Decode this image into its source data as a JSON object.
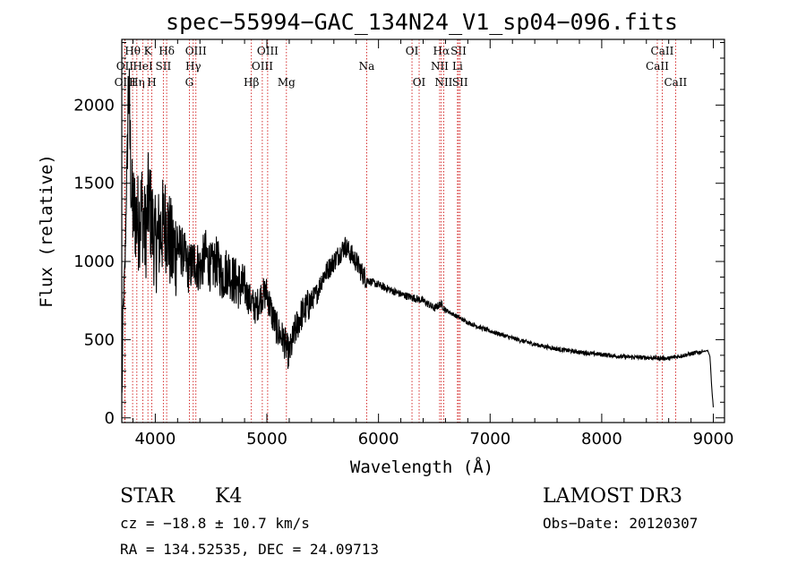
{
  "chart_data": {
    "type": "line",
    "title": "spec−55994−GAC_134N24_V1_sp04−096.fits",
    "xlabel": "Wavelength (Å)",
    "ylabel": "Flux (relative)",
    "xlim": [
      3700,
      9100
    ],
    "ylim": [
      -30,
      2420
    ],
    "xticks": [
      4000,
      5000,
      6000,
      7000,
      8000,
      9000
    ],
    "yticks": [
      0,
      500,
      1000,
      1500,
      2000
    ],
    "colors": {
      "spectrum": "#000000",
      "lines": "#cc0000"
    },
    "spectrum_anchor_points": {
      "x": [
        3700,
        3710,
        3730,
        3760,
        3790,
        3820,
        3850,
        3880,
        3910,
        3940,
        3970,
        4000,
        4050,
        4100,
        4150,
        4200,
        4250,
        4300,
        4350,
        4400,
        4450,
        4500,
        4550,
        4600,
        4650,
        4700,
        4750,
        4800,
        4850,
        4900,
        4950,
        5000,
        5050,
        5100,
        5150,
        5200,
        5250,
        5300,
        5350,
        5400,
        5450,
        5500,
        5550,
        5600,
        5650,
        5700,
        5750,
        5800,
        5850,
        5900,
        6000,
        6100,
        6200,
        6300,
        6400,
        6500,
        6560,
        6600,
        6700,
        6800,
        6900,
        7000,
        7200,
        7400,
        7600,
        7800,
        8000,
        8200,
        8400,
        8600,
        8800,
        8950,
        8970,
        8985,
        9000
      ],
      "y": [
        0,
        650,
        1000,
        2150,
        1350,
        1300,
        1250,
        1350,
        1150,
        1400,
        1250,
        1100,
        1200,
        1250,
        1050,
        1100,
        1050,
        950,
        1000,
        950,
        1050,
        950,
        1000,
        900,
        950,
        880,
        850,
        820,
        750,
        700,
        780,
        800,
        650,
        550,
        500,
        400,
        550,
        650,
        700,
        750,
        800,
        900,
        950,
        1000,
        1050,
        1100,
        1050,
        1000,
        930,
        880,
        850,
        820,
        790,
        770,
        750,
        700,
        730,
        690,
        650,
        610,
        580,
        555,
        510,
        470,
        440,
        420,
        405,
        390,
        385,
        380,
        410,
        430,
        390,
        200,
        60
      ]
    },
    "spectral_lines": [
      {
        "name": "Hθ",
        "wavelength": 3797,
        "row": 1
      },
      {
        "name": "OII",
        "wavelength": 3727,
        "row": 2
      },
      {
        "name": "OIII",
        "wavelength": 3729,
        "row": 3
      },
      {
        "name": "Hη",
        "wavelength": 3835,
        "row": 3
      },
      {
        "name": "HeI",
        "wavelength": 3889,
        "row": 2
      },
      {
        "name": "K",
        "wavelength": 3934,
        "row": 1
      },
      {
        "name": "H",
        "wavelength": 3969,
        "row": 3
      },
      {
        "name": "SII",
        "wavelength": 4072,
        "row": 2
      },
      {
        "name": "Hδ",
        "wavelength": 4102,
        "row": 1
      },
      {
        "name": "OIII",
        "wavelength": 4364,
        "row": 1
      },
      {
        "name": "Hγ",
        "wavelength": 4340,
        "row": 2
      },
      {
        "name": "G",
        "wavelength": 4305,
        "row": 3
      },
      {
        "name": "Hβ",
        "wavelength": 4861,
        "row": 3
      },
      {
        "name": "OIII",
        "wavelength": 5007,
        "row": 1
      },
      {
        "name": "OIII",
        "wavelength": 4959,
        "row": 2
      },
      {
        "name": "Mg",
        "wavelength": 5175,
        "row": 3
      },
      {
        "name": "Na",
        "wavelength": 5894,
        "row": 2
      },
      {
        "name": "OI",
        "wavelength": 6300,
        "row": 1
      },
      {
        "name": "OI",
        "wavelength": 6364,
        "row": 3
      },
      {
        "name": "Hα",
        "wavelength": 6563,
        "row": 1
      },
      {
        "name": "NII",
        "wavelength": 6548,
        "row": 2
      },
      {
        "name": "NII",
        "wavelength": 6584,
        "row": 3
      },
      {
        "name": "SII",
        "wavelength": 6717,
        "row": 1
      },
      {
        "name": "Li",
        "wavelength": 6708,
        "row": 2
      },
      {
        "name": "SII",
        "wavelength": 6731,
        "row": 3
      },
      {
        "name": "CaII",
        "wavelength": 8542,
        "row": 1
      },
      {
        "name": "CaII",
        "wavelength": 8498,
        "row": 2
      },
      {
        "name": "CaII",
        "wavelength": 8662,
        "row": 3
      }
    ]
  },
  "info": {
    "class": "STAR",
    "subclass": "K4",
    "survey": "LAMOST DR3",
    "cz": "cz = −18.8 ± 10.7 km/s",
    "obs_date": "Obs−Date: 20120307",
    "coords": "RA = 134.52535, DEC =  24.09713"
  }
}
